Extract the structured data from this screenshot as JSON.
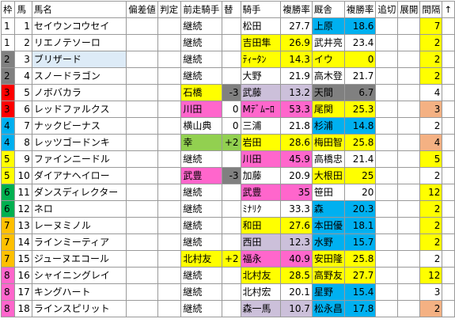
{
  "headers": [
    "枠",
    "馬",
    "馬名",
    "偏差値",
    "判定",
    "前走騎手",
    "替",
    "騎手",
    "複勝率",
    "厩舎",
    "複勝率",
    "追切",
    "展開",
    "間隔",
    "↑"
  ],
  "colors": {
    "waku": {
      "1": "#ffffff",
      "2": "#808080",
      "3": "#ff0000",
      "4": "#00b0f0",
      "5": "#ffff00",
      "6": "#00b050",
      "7": "#ffc000",
      "8": "#ff66cc"
    },
    "yellow": "#ffff00",
    "pink": "#ff66cc",
    "lavender": "#ccc0da",
    "blue": "#00b0f0",
    "green": "#92d050",
    "orange": "#f4b183",
    "lightblue": "#ddebf7",
    "gray": "#808080"
  },
  "rows": [
    {
      "waku": "1",
      "no": "1",
      "name": "セイウンコウセイ",
      "prev": "継続",
      "kae": "",
      "jockey": "松田",
      "jrate": "27.7",
      "trainer": "上原",
      "trate": "18.6",
      "kan": "7",
      "c": {
        "prev": "",
        "jockey": "",
        "jrate": "",
        "trainer": "blue",
        "trate": "blue",
        "kan": "yellow"
      }
    },
    {
      "waku": "1",
      "no": "2",
      "name": "リエノテソーロ",
      "prev": "継続",
      "kae": "",
      "jockey": "吉田隼",
      "jrate": "26.9",
      "trainer": "武井亮",
      "trate": "23.4",
      "kan": "2",
      "c": {
        "prev": "",
        "jockey": "yellow",
        "jrate": "yellow",
        "trainer": "",
        "trate": "",
        "kan": "yellow"
      }
    },
    {
      "waku": "2",
      "no": "3",
      "name": "ブリザード",
      "prev": "継続",
      "kae": "",
      "jockey": "ﾃｨｰﾀﾝ",
      "jrate": "14.3",
      "trainer": "イウ",
      "trate": "0",
      "kan": "2",
      "c": {
        "name": "lightblue",
        "prev": "",
        "jockey": "yellow",
        "jrate": "yellow",
        "trainer": "yellow",
        "trate": "yellow",
        "kan": "yellow"
      }
    },
    {
      "waku": "2",
      "no": "4",
      "name": "スノードラゴン",
      "prev": "継続",
      "kae": "",
      "jockey": "大野",
      "jrate": "21.9",
      "trainer": "高木登",
      "trate": "21.7",
      "kan": "2",
      "c": {
        "prev": "",
        "jockey": "",
        "jrate": "",
        "trainer": "",
        "trate": "",
        "kan": "yellow"
      }
    },
    {
      "waku": "3",
      "no": "5",
      "name": "ノボバカラ",
      "prev": "石橋",
      "kae": "-3",
      "jockey": "武藤",
      "jrate": "13.2",
      "trainer": "天間",
      "trate": "6.7",
      "kan": "4",
      "c": {
        "prev": "yellow",
        "kae": "gray",
        "jockey": "lavender",
        "jrate": "lavender",
        "trainer": "gray",
        "trate": "gray",
        "kan": ""
      }
    },
    {
      "waku": "3",
      "no": "6",
      "name": "レッドファルクス",
      "prev": "川田",
      "kae": "0",
      "jockey": "Mﾃﾞﾑｰﾛ",
      "jrate": "53.3",
      "trainer": "尾関",
      "trate": "25.3",
      "kan": "3",
      "c": {
        "prev": "pink",
        "kae": "",
        "jockey": "pink",
        "jrate": "pink",
        "trainer": "yellow",
        "trate": "yellow",
        "kan": "orange"
      }
    },
    {
      "waku": "4",
      "no": "7",
      "name": "ナックビーナス",
      "prev": "横山典",
      "kae": "0",
      "jockey": "三浦",
      "jrate": "21.8",
      "trainer": "杉浦",
      "trate": "14.8",
      "kan": "2",
      "c": {
        "prev": "",
        "kae": "",
        "jockey": "",
        "jrate": "",
        "trainer": "blue",
        "trate": "blue",
        "kan": ""
      }
    },
    {
      "waku": "4",
      "no": "8",
      "name": "レッツゴードンキ",
      "prev": "幸",
      "kae": "+2",
      "jockey": "岩田",
      "jrate": "28.6",
      "trainer": "梅田智",
      "trate": "25.8",
      "kan": "4",
      "c": {
        "prev": "green",
        "kae": "green",
        "jockey": "yellow",
        "jrate": "yellow",
        "trainer": "yellow",
        "trate": "yellow",
        "kan": "orange"
      }
    },
    {
      "waku": "5",
      "no": "9",
      "name": "ファインニードル",
      "prev": "継続",
      "kae": "",
      "jockey": "川田",
      "jrate": "45.9",
      "trainer": "高橋忠",
      "trate": "21.4",
      "kan": "5",
      "c": {
        "prev": "",
        "jockey": "pink",
        "jrate": "pink",
        "trainer": "",
        "trate": "",
        "kan": "yellow"
      }
    },
    {
      "waku": "5",
      "no": "10",
      "name": "ダイアナヘイロー",
      "prev": "武豊",
      "kae": "-3",
      "jockey": "加藤",
      "jrate": "20.9",
      "trainer": "大根田",
      "trate": "25",
      "kan": "2",
      "c": {
        "prev": "pink",
        "kae": "gray",
        "jockey": "",
        "jrate": "",
        "trainer": "yellow",
        "trate": "yellow",
        "kan": ""
      }
    },
    {
      "waku": "6",
      "no": "11",
      "name": "ダンスディレクター",
      "prev": "継続",
      "kae": "",
      "jockey": "武豊",
      "jrate": "35",
      "trainer": "笹田",
      "trate": "20",
      "kan": "12",
      "c": {
        "prev": "",
        "jockey": "pink",
        "jrate": "pink",
        "trainer": "",
        "trate": "",
        "kan": "yellow"
      }
    },
    {
      "waku": "6",
      "no": "12",
      "name": "ネロ",
      "prev": "継続",
      "kae": "",
      "jockey": "ﾐﾅﾘｸ",
      "jrate": "33.3",
      "trainer": "森",
      "trate": "20.3",
      "kan": "2",
      "c": {
        "prev": "",
        "jockey": "",
        "jrate": "",
        "trainer": "blue",
        "trate": "blue",
        "kan": "yellow"
      }
    },
    {
      "waku": "7",
      "no": "13",
      "name": "レーヌミノル",
      "prev": "継続",
      "kae": "",
      "jockey": "和田",
      "jrate": "27.6",
      "trainer": "本田優",
      "trate": "18.1",
      "kan": "2",
      "c": {
        "prev": "",
        "jockey": "yellow",
        "jrate": "yellow",
        "trainer": "blue",
        "trate": "blue",
        "kan": "yellow"
      }
    },
    {
      "waku": "7",
      "no": "14",
      "name": "ラインミーティア",
      "prev": "継続",
      "kae": "",
      "jockey": "西田",
      "jrate": "12.3",
      "trainer": "水野",
      "trate": "15.7",
      "kan": "2",
      "c": {
        "prev": "",
        "jockey": "lavender",
        "jrate": "lavender",
        "trainer": "blue",
        "trate": "blue",
        "kan": "yellow"
      }
    },
    {
      "waku": "7",
      "no": "15",
      "name": "ジューヌエコール",
      "prev": "北村友",
      "kae": "+2",
      "jockey": "福永",
      "jrate": "40.9",
      "trainer": "安田隆",
      "trate": "25.8",
      "kan": "2",
      "c": {
        "prev": "yellow",
        "kae": "yellow",
        "jockey": "pink",
        "jrate": "pink",
        "trainer": "yellow",
        "trate": "yellow",
        "kan": ""
      }
    },
    {
      "waku": "8",
      "no": "16",
      "name": "シャイニングレイ",
      "prev": "継続",
      "kae": "",
      "jockey": "北村友",
      "jrate": "28.5",
      "trainer": "高野友",
      "trate": "27.7",
      "kan": "12",
      "c": {
        "prev": "",
        "jockey": "yellow",
        "jrate": "yellow",
        "trainer": "yellow",
        "trate": "yellow",
        "kan": "yellow"
      }
    },
    {
      "waku": "8",
      "no": "17",
      "name": "キングハート",
      "prev": "継続",
      "kae": "",
      "jockey": "北村宏",
      "jrate": "20.1",
      "trainer": "星野",
      "trate": "15.4",
      "kan": "3",
      "c": {
        "prev": "",
        "jockey": "",
        "jrate": "",
        "trainer": "blue",
        "trate": "blue",
        "kan": ""
      }
    },
    {
      "waku": "8",
      "no": "18",
      "name": "ラインスピリット",
      "prev": "継続",
      "kae": "",
      "jockey": "森一馬",
      "jrate": "10.7",
      "trainer": "松永昌",
      "trate": "17.8",
      "kan": "2",
      "c": {
        "prev": "",
        "jockey": "lavender",
        "jrate": "lavender",
        "trainer": "blue",
        "trate": "blue",
        "kan": "orange"
      }
    }
  ]
}
